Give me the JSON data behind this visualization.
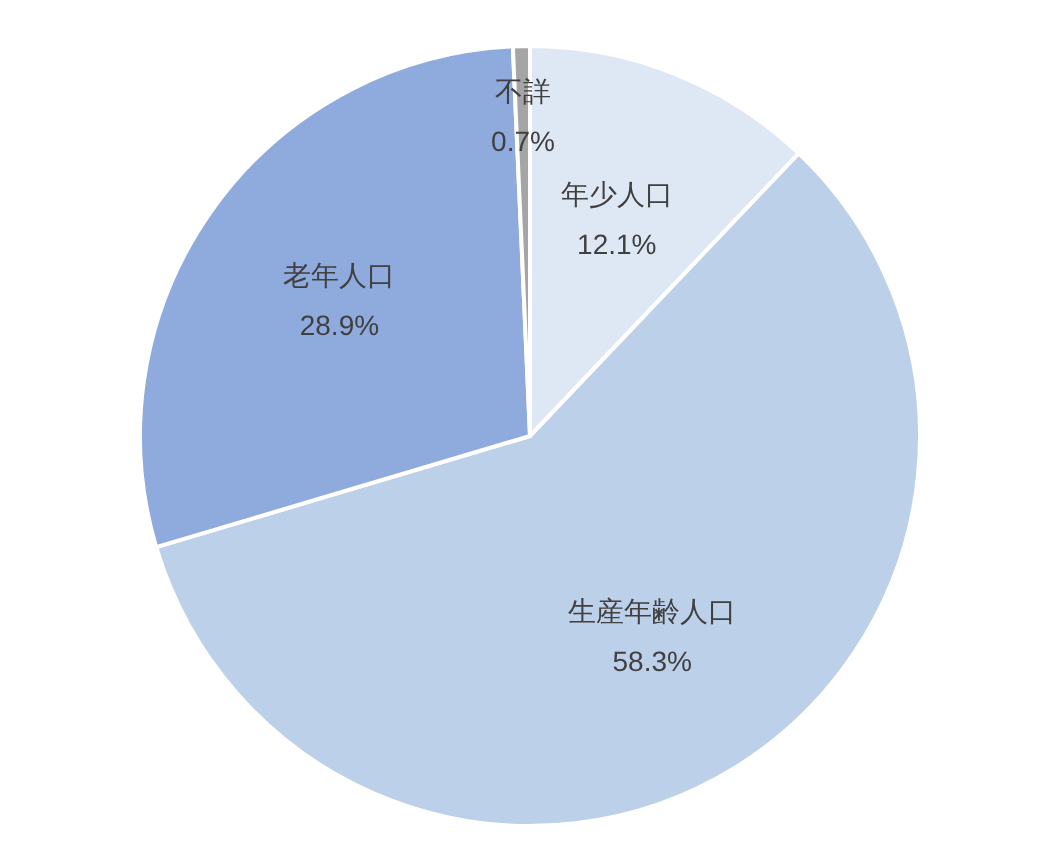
{
  "chart_data": {
    "type": "pie",
    "categories": [
      "年少人口",
      "生産年齢人口",
      "老年人口",
      "不詳"
    ],
    "values": [
      12.1,
      58.3,
      28.9,
      0.7
    ],
    "value_labels": [
      "12.1%",
      "58.3%",
      "28.9%",
      "0.7%"
    ],
    "colors": [
      "#dee7f4",
      "#bdd0e9",
      "#8faadc",
      "#a5a5a5"
    ]
  }
}
